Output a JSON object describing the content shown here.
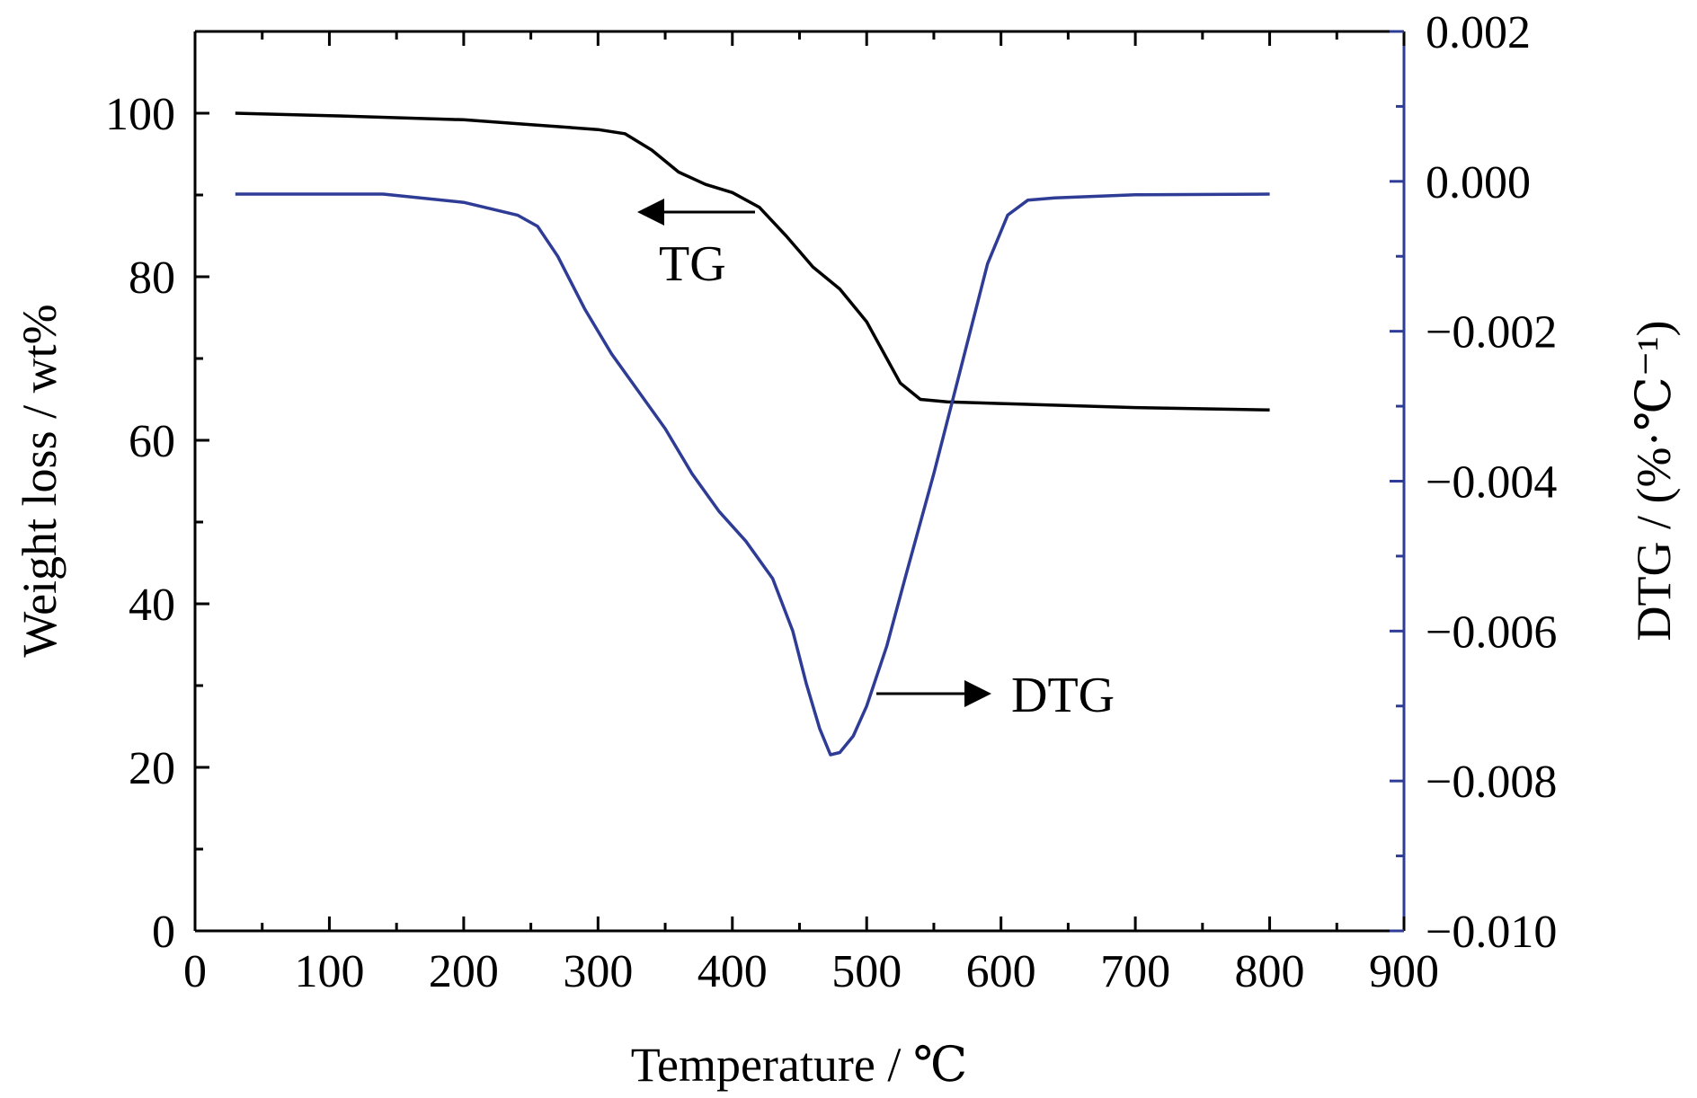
{
  "chart_data": {
    "type": "line",
    "xlabel": "Temperature / ℃",
    "ylabel_left": "Weight loss / wt%",
    "ylabel_right": "DTG / (%·℃⁻¹)",
    "xlim": [
      0,
      900
    ],
    "ylim_left": [
      0,
      110
    ],
    "ylim_right": [
      -0.01,
      0.002
    ],
    "x_ticks": [
      0,
      100,
      200,
      300,
      400,
      500,
      600,
      700,
      800,
      900
    ],
    "y_left_ticks": [
      0,
      20,
      40,
      60,
      80,
      100
    ],
    "y_right_ticks": [
      0.002,
      0.0,
      -0.002,
      -0.004,
      -0.006,
      -0.008,
      -0.01
    ],
    "x_tick_labels": [
      "0",
      "100",
      "200",
      "300",
      "400",
      "500",
      "600",
      "700",
      "800",
      "900"
    ],
    "y_left_tick_labels": [
      "0",
      "20",
      "40",
      "60",
      "80",
      "100"
    ],
    "y_right_tick_labels": [
      "0.002",
      "0.000",
      "−0.002",
      "−0.004",
      "−0.006",
      "−0.008",
      "−0.010"
    ],
    "grid": false,
    "series": [
      {
        "name": "TG",
        "axis": "left",
        "color": "#000000",
        "points": [
          [
            30,
            100
          ],
          [
            100,
            99.7
          ],
          [
            200,
            99.2
          ],
          [
            250,
            98.6
          ],
          [
            300,
            98
          ],
          [
            320,
            97.5
          ],
          [
            340,
            95.5
          ],
          [
            360,
            92.8
          ],
          [
            380,
            91.3
          ],
          [
            400,
            90.3
          ],
          [
            420,
            88.5
          ],
          [
            440,
            85
          ],
          [
            460,
            81.2
          ],
          [
            480,
            78.5
          ],
          [
            500,
            74.5
          ],
          [
            515,
            70
          ],
          [
            525,
            67
          ],
          [
            540,
            65
          ],
          [
            560,
            64.7
          ],
          [
            600,
            64.5
          ],
          [
            700,
            64
          ],
          [
            800,
            63.7
          ]
        ]
      },
      {
        "name": "DTG",
        "axis": "right",
        "color": "#2e3c96",
        "points": [
          [
            30,
            -0.00017
          ],
          [
            100,
            -0.00017
          ],
          [
            140,
            -0.00017
          ],
          [
            200,
            -0.00028
          ],
          [
            240,
            -0.00045
          ],
          [
            255,
            -0.0006
          ],
          [
            270,
            -0.001
          ],
          [
            290,
            -0.0017
          ],
          [
            310,
            -0.0023
          ],
          [
            330,
            -0.0028
          ],
          [
            350,
            -0.0033
          ],
          [
            370,
            -0.0039
          ],
          [
            390,
            -0.0044
          ],
          [
            410,
            -0.0048
          ],
          [
            430,
            -0.0053
          ],
          [
            445,
            -0.006
          ],
          [
            455,
            -0.0067
          ],
          [
            465,
            -0.0073
          ],
          [
            473,
            -0.00765
          ],
          [
            480,
            -0.00762
          ],
          [
            490,
            -0.0074
          ],
          [
            500,
            -0.007
          ],
          [
            515,
            -0.0062
          ],
          [
            530,
            -0.0052
          ],
          [
            550,
            -0.0039
          ],
          [
            570,
            -0.0025
          ],
          [
            590,
            -0.0011
          ],
          [
            605,
            -0.00045
          ],
          [
            620,
            -0.00025
          ],
          [
            640,
            -0.00022
          ],
          [
            700,
            -0.00018
          ],
          [
            800,
            -0.00017
          ]
        ]
      }
    ],
    "annotations": [
      {
        "text": "TG",
        "arrow": "left",
        "anchor_series": "TG"
      },
      {
        "text": "DTG",
        "arrow": "right",
        "anchor_series": "DTG"
      }
    ]
  }
}
